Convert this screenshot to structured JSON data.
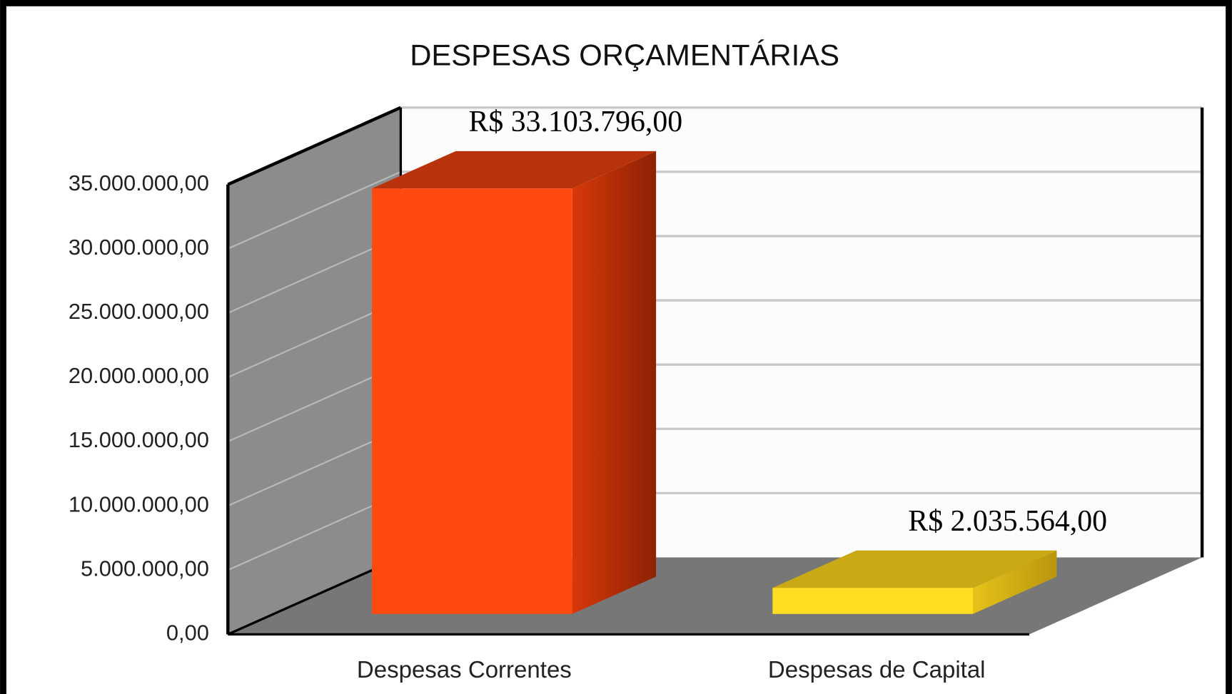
{
  "chart_data": {
    "type": "bar3d",
    "title": "DESPESAS ORÇAMENTÁRIAS",
    "categories": [
      "Despesas Correntes",
      "Despesas de Capital"
    ],
    "values": [
      33103796,
      2035564
    ],
    "value_labels": [
      "R$ 33.103.796,00",
      "R$ 2.035.564,00"
    ],
    "colors": [
      "#ff4a0f",
      "#ffdd22"
    ],
    "ylim": [
      0,
      35000000
    ],
    "yticks": [
      {
        "value": 0,
        "label": "0,00"
      },
      {
        "value": 5000000,
        "label": "5.000.000,00"
      },
      {
        "value": 10000000,
        "label": "10.000.000,00"
      },
      {
        "value": 15000000,
        "label": "15.000.000,00"
      },
      {
        "value": 20000000,
        "label": "20.000.000,00"
      },
      {
        "value": 25000000,
        "label": "25.000.000,00"
      },
      {
        "value": 30000000,
        "label": "30.000.000,00"
      },
      {
        "value": 35000000,
        "label": "35.000.000,00"
      }
    ],
    "grid": true
  }
}
